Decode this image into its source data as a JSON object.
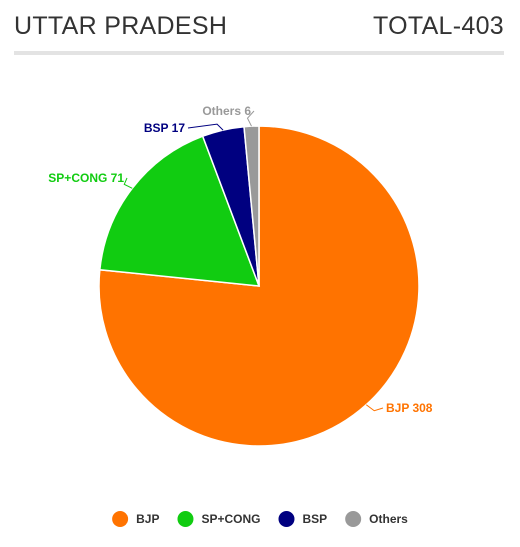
{
  "header": {
    "title": "UTTAR PRADESH",
    "total": "TOTAL-403"
  },
  "chart_data": {
    "type": "pie",
    "title": "UTTAR PRADESH",
    "subtitle": "TOTAL-403",
    "categories": [
      "BJP",
      "SP+CONG",
      "BSP",
      "Others"
    ],
    "values": [
      308,
      71,
      17,
      6
    ],
    "colors": [
      "#ff7300",
      "#11cc11",
      "#000080",
      "#999999"
    ],
    "data_labels": [
      "BJP 308",
      "SP+CONG 71",
      "BSP 17",
      "Others 6"
    ],
    "legend_position": "bottom-center"
  }
}
